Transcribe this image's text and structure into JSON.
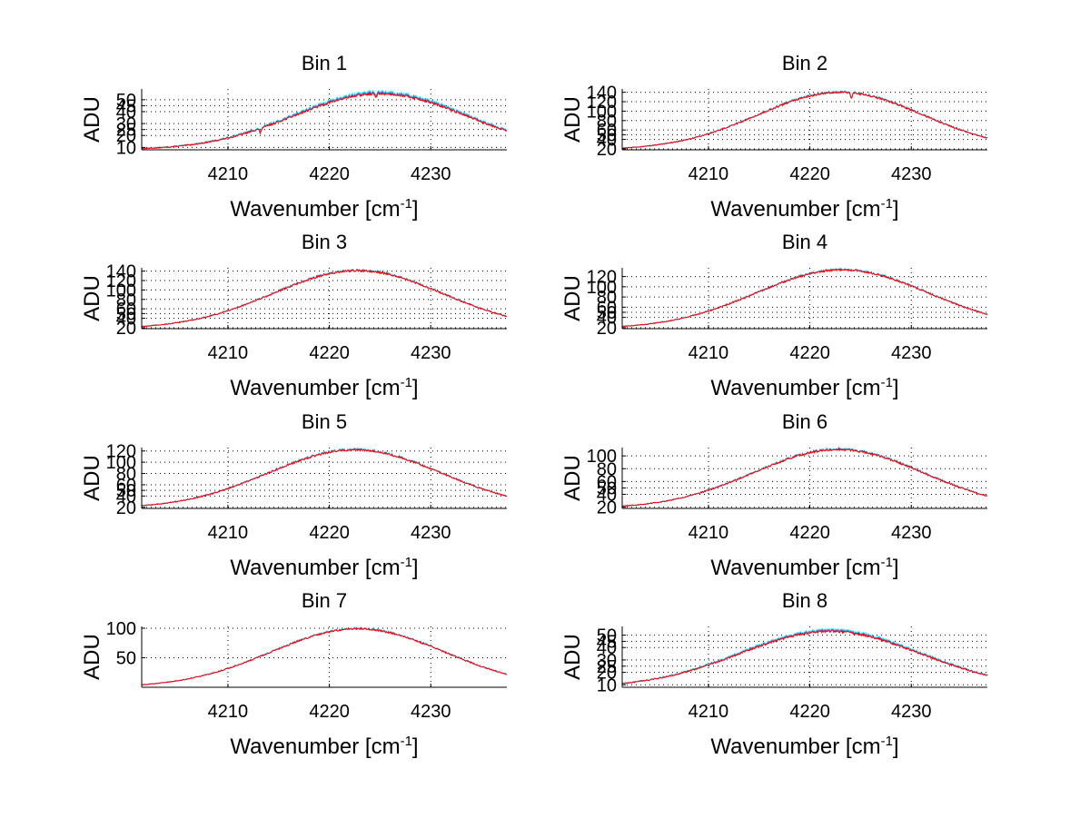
{
  "figure": {
    "background": "#ffffff",
    "series_colors": [
      "#00ffff",
      "#5577ff",
      "#ff0000"
    ]
  },
  "chart_data": [
    {
      "type": "line",
      "title": "Bin 1",
      "xlabel": "Wavenumber [cm",
      "xlabel_sup": "-1",
      "xlabel_end": "]",
      "ylabel": "ADU",
      "xlim": [
        4201.5,
        4237.5
      ],
      "ylim": [
        8,
        59
      ],
      "xticks": [
        4210,
        4220,
        4230
      ],
      "yticks": [
        10,
        20,
        25,
        30,
        40,
        45,
        50
      ],
      "x_range": [
        4201.5,
        4237.5
      ],
      "peak_x": 4225,
      "peak_y": 55,
      "sigma": 12,
      "min_y": 8,
      "noise": 0.8,
      "spread": 1.6,
      "dips": [
        {
          "x": 4213.2,
          "depth": 4
        },
        {
          "x": 4224.6,
          "depth": 3
        }
      ]
    },
    {
      "type": "line",
      "title": "Bin 2",
      "xlabel": "Wavenumber [cm",
      "xlabel_sup": "-1",
      "xlabel_end": "]",
      "ylabel": "ADU",
      "xlim": [
        4201.5,
        4237.5
      ],
      "ylim": [
        18,
        147
      ],
      "xticks": [
        4210,
        4220,
        4230
      ],
      "yticks": [
        20,
        40,
        50,
        60,
        80,
        100,
        120,
        140
      ],
      "x_range": [
        4201.5,
        4237.5
      ],
      "peak_x": 4223,
      "peak_y": 140,
      "sigma": 11.5,
      "min_y": 18,
      "noise": 1.5,
      "spread": 1.2,
      "dips": [
        {
          "x": 4224.1,
          "depth": 12
        }
      ]
    },
    {
      "type": "line",
      "title": "Bin 3",
      "xlabel": "Wavenumber [cm",
      "xlabel_sup": "-1",
      "xlabel_end": "]",
      "ylabel": "ADU",
      "xlim": [
        4201.5,
        4237.5
      ],
      "ylim": [
        18,
        147
      ],
      "xticks": [
        4210,
        4220,
        4230
      ],
      "yticks": [
        20,
        40,
        50,
        60,
        80,
        100,
        120,
        140
      ],
      "x_range": [
        4201.5,
        4237.5
      ],
      "peak_x": 4222.8,
      "peak_y": 141,
      "sigma": 11.8,
      "min_y": 18,
      "noise": 1.5,
      "spread": 1.0,
      "dips": []
    },
    {
      "type": "line",
      "title": "Bin 4",
      "xlabel": "Wavenumber [cm",
      "xlabel_sup": "-1",
      "xlabel_end": "]",
      "ylabel": "ADU",
      "xlim": [
        4201.5,
        4237.5
      ],
      "ylim": [
        18,
        137
      ],
      "xticks": [
        4210,
        4220,
        4230
      ],
      "yticks": [
        20,
        40,
        50,
        60,
        80,
        100,
        120
      ],
      "x_range": [
        4201.5,
        4237.5
      ],
      "peak_x": 4223.2,
      "peak_y": 133,
      "sigma": 12,
      "min_y": 18,
      "noise": 1.4,
      "spread": 1.0,
      "dips": []
    },
    {
      "type": "line",
      "title": "Bin 5",
      "xlabel": "Wavenumber [cm",
      "xlabel_sup": "-1",
      "xlabel_end": "]",
      "ylabel": "ADU",
      "xlim": [
        4201.5,
        4237.5
      ],
      "ylim": [
        18,
        126
      ],
      "xticks": [
        4210,
        4220,
        4230
      ],
      "yticks": [
        20,
        40,
        50,
        60,
        80,
        100,
        120
      ],
      "x_range": [
        4201.5,
        4237.5
      ],
      "peak_x": 4222.5,
      "peak_y": 122,
      "sigma": 12,
      "min_y": 18,
      "noise": 1.3,
      "spread": 1.0,
      "dips": []
    },
    {
      "type": "line",
      "title": "Bin 6",
      "xlabel": "Wavenumber [cm",
      "xlabel_sup": "-1",
      "xlabel_end": "]",
      "ylabel": "ADU",
      "xlim": [
        4201.5,
        4237.5
      ],
      "ylim": [
        18,
        113
      ],
      "xticks": [
        4210,
        4220,
        4230
      ],
      "yticks": [
        20,
        40,
        50,
        60,
        80,
        100
      ],
      "x_range": [
        4201.5,
        4237.5
      ],
      "peak_x": 4222.8,
      "peak_y": 110,
      "sigma": 11.8,
      "min_y": 18,
      "noise": 1.2,
      "spread": 1.0,
      "dips": []
    },
    {
      "type": "line",
      "title": "Bin 7",
      "xlabel": "Wavenumber [cm",
      "xlabel_sup": "-1",
      "xlabel_end": "]",
      "ylabel": "ADU",
      "xlim": [
        4201.5,
        4237.5
      ],
      "ylim": [
        0,
        103
      ],
      "xticks": [
        4210,
        4220,
        4230
      ],
      "yticks": [
        50,
        100
      ],
      "x_range": [
        4201.5,
        4237.5
      ],
      "peak_x": 4222.8,
      "peak_y": 99,
      "sigma": 12,
      "min_y": 0,
      "noise": 1.1,
      "spread": 0.8,
      "dips": []
    },
    {
      "type": "line",
      "title": "Bin 8",
      "xlabel": "Wavenumber [cm",
      "xlabel_sup": "-1",
      "xlabel_end": "]",
      "ylabel": "ADU",
      "xlim": [
        4201.5,
        4237.5
      ],
      "ylim": [
        8,
        57
      ],
      "xticks": [
        4210,
        4220,
        4230
      ],
      "yticks": [
        10,
        20,
        25,
        30,
        40,
        45,
        50
      ],
      "x_range": [
        4201.5,
        4237.5
      ],
      "peak_x": 4222,
      "peak_y": 53,
      "sigma": 12.5,
      "min_y": 8,
      "noise": 0.7,
      "spread": 1.2,
      "dips": []
    }
  ]
}
